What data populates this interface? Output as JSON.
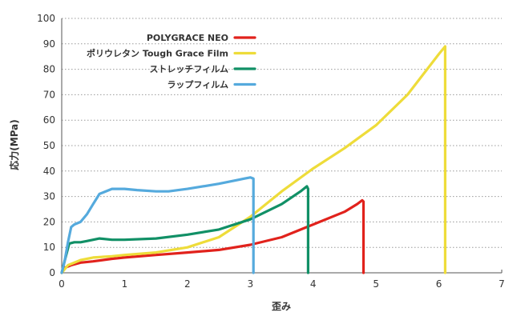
{
  "chart_data": {
    "type": "line",
    "title": "",
    "xlabel": "歪み",
    "ylabel": "応力(MPa)",
    "xlim": [
      0,
      7
    ],
    "ylim": [
      0,
      100
    ],
    "xticks": [
      0,
      1,
      2,
      3,
      4,
      5,
      6,
      7
    ],
    "yticks": [
      0,
      10,
      20,
      30,
      40,
      50,
      60,
      70,
      80,
      90,
      100
    ],
    "grid": "horizontal",
    "legend_position": "top-right",
    "series": [
      {
        "name": "POLYGRACE NEO",
        "color": "#e1221c",
        "x": [
          0,
          0.05,
          0.15,
          0.3,
          0.5,
          0.8,
          1.0,
          1.5,
          2.0,
          2.5,
          3.0,
          3.5,
          4.0,
          4.5,
          4.7,
          4.78,
          4.8,
          4.8
        ],
        "y": [
          0,
          2,
          3,
          4,
          4.5,
          5.5,
          6,
          7,
          8,
          9,
          11,
          14,
          19,
          24,
          27,
          28.5,
          28,
          0
        ]
      },
      {
        "name": "ポリウレタン Tough Grace Film",
        "color": "#eedc3a",
        "x": [
          0,
          0.1,
          0.3,
          0.5,
          0.8,
          1.0,
          1.5,
          2.0,
          2.5,
          3.0,
          3.5,
          4.0,
          4.5,
          5.0,
          5.5,
          6.0,
          6.1,
          6.1
        ],
        "y": [
          0,
          3,
          5,
          6,
          6.5,
          7,
          8,
          10,
          14,
          22,
          32,
          41,
          49,
          58,
          70,
          86,
          89,
          0
        ]
      },
      {
        "name": "ストレッチフィルム",
        "color": "#119066",
        "x": [
          0,
          0.05,
          0.12,
          0.2,
          0.3,
          0.4,
          0.6,
          0.8,
          1.0,
          1.5,
          2.0,
          2.5,
          3.0,
          3.5,
          3.8,
          3.9,
          3.92,
          3.92
        ],
        "y": [
          0,
          5,
          11.5,
          12,
          12,
          12.5,
          13.5,
          13,
          13,
          13.5,
          15,
          17,
          21,
          27,
          32,
          34,
          33,
          0
        ]
      },
      {
        "name": "ラップフィルム",
        "color": "#55aadd",
        "x": [
          0,
          0.05,
          0.1,
          0.15,
          0.2,
          0.3,
          0.4,
          0.5,
          0.6,
          0.8,
          1.0,
          1.2,
          1.5,
          1.7,
          2.0,
          2.5,
          2.8,
          2.9,
          3.0,
          3.05,
          3.05
        ],
        "y": [
          0,
          5,
          12,
          18,
          19,
          20,
          23,
          27,
          31,
          33,
          33,
          32.5,
          32,
          32,
          33,
          35,
          36.5,
          37,
          37.5,
          37,
          0
        ]
      }
    ]
  }
}
